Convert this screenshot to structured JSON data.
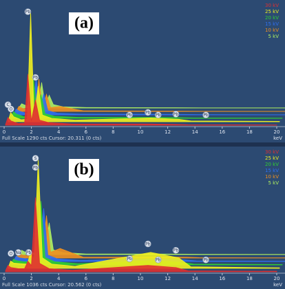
{
  "chart_data": [
    {
      "type": "area",
      "title": "(a)",
      "footer": "Full Scale 1290 cts Cursor: 20.311 (0 cts)",
      "x_label": "keV",
      "x": [
        0.1,
        0.28,
        0.5,
        1.04,
        1.5,
        1.74,
        2.0,
        2.3,
        2.6,
        3.3,
        5,
        10.55,
        12.6,
        13.5,
        20
      ],
      "series": [
        {
          "name": "30 kV",
          "color": "#e03030",
          "values": [
            10,
            90,
            50,
            20,
            25,
            600,
            50,
            300,
            60,
            30,
            15,
            15,
            10,
            6,
            3
          ]
        },
        {
          "name": "25 kV",
          "color": "#f0f020",
          "values": [
            10,
            110,
            60,
            25,
            30,
            1290,
            60,
            420,
            80,
            40,
            20,
            45,
            30,
            10,
            5
          ]
        },
        {
          "name": "20 kV",
          "color": "#30d030",
          "values": [
            10,
            80,
            50,
            20,
            25,
            500,
            45,
            280,
            55,
            25,
            12,
            12,
            8,
            5,
            3
          ]
        },
        {
          "name": "15 kV",
          "color": "#3070f0",
          "values": [
            10,
            70,
            45,
            18,
            20,
            450,
            40,
            250,
            50,
            20,
            10,
            8,
            6,
            4,
            2
          ]
        },
        {
          "name": "10 kV",
          "color": "#f09020",
          "values": [
            10,
            60,
            40,
            15,
            18,
            380,
            35,
            200,
            45,
            60,
            8,
            5,
            4,
            3,
            2
          ]
        },
        {
          "name": "5 kV",
          "color": "#b0f060",
          "values": [
            10,
            50,
            35,
            12,
            15,
            300,
            30,
            150,
            40,
            15,
            6,
            4,
            3,
            2,
            2
          ]
        }
      ],
      "xlim": [
        0,
        20
      ],
      "ylim": [
        0,
        1290
      ],
      "xticks": [
        0,
        2,
        4,
        6,
        8,
        10,
        12,
        14,
        16,
        18,
        20
      ],
      "annotations": [
        {
          "text": "Pb",
          "x": 1.74,
          "y": 1290
        },
        {
          "text": "C",
          "x": 0.28,
          "y": 200
        },
        {
          "text": "O",
          "x": 0.5,
          "y": 150
        },
        {
          "text": "Pb",
          "x": 2.3,
          "y": 520
        },
        {
          "text": "Pb",
          "x": 9.2,
          "y": 80
        },
        {
          "text": "Pb",
          "x": 10.55,
          "y": 110
        },
        {
          "text": "Pb",
          "x": 11.3,
          "y": 80
        },
        {
          "text": "Pb",
          "x": 12.6,
          "y": 90
        },
        {
          "text": "Pb",
          "x": 14.8,
          "y": 80
        }
      ]
    },
    {
      "type": "area",
      "title": "(b)",
      "footer": "Full Scale 1036 cts Cursor: 20.562 (0 cts)",
      "x_label": "keV",
      "x": [
        0.1,
        0.28,
        0.5,
        1.04,
        1.5,
        1.74,
        2.0,
        2.3,
        2.6,
        3.3,
        5,
        10.55,
        12.6,
        13.5,
        20
      ],
      "series": [
        {
          "name": "30 kV",
          "color": "#e03030",
          "values": [
            10,
            60,
            40,
            30,
            30,
            100,
            60,
            700,
            80,
            30,
            15,
            60,
            40,
            10,
            5
          ]
        },
        {
          "name": "25 kV",
          "color": "#f0f020",
          "values": [
            10,
            70,
            50,
            45,
            40,
            150,
            80,
            1036,
            100,
            40,
            20,
            150,
            100,
            15,
            5
          ]
        },
        {
          "name": "20 kV",
          "color": "#30d030",
          "values": [
            10,
            55,
            40,
            30,
            30,
            90,
            60,
            600,
            70,
            30,
            12,
            40,
            25,
            8,
            4
          ]
        },
        {
          "name": "15 kV",
          "color": "#3070f0",
          "values": [
            10,
            50,
            35,
            25,
            25,
            80,
            50,
            500,
            60,
            25,
            10,
            25,
            15,
            6,
            3
          ]
        },
        {
          "name": "10 kV",
          "color": "#f09020",
          "values": [
            10,
            45,
            30,
            20,
            20,
            70,
            45,
            400,
            55,
            90,
            8,
            10,
            8,
            4,
            2
          ]
        },
        {
          "name": "5 kV",
          "color": "#b0f060",
          "values": [
            10,
            40,
            25,
            15,
            15,
            60,
            40,
            300,
            45,
            20,
            6,
            5,
            4,
            3,
            2
          ]
        }
      ],
      "xlim": [
        0,
        20
      ],
      "ylim": [
        0,
        1036
      ],
      "xticks": [
        0,
        2,
        4,
        6,
        8,
        10,
        12,
        14,
        16,
        18,
        20
      ],
      "annotations": [
        {
          "text": "S",
          "x": 2.3,
          "y": 1036
        },
        {
          "text": "Pb",
          "x": 2.3,
          "y": 950
        },
        {
          "text": "O",
          "x": 0.5,
          "y": 140
        },
        {
          "text": "Na",
          "x": 1.04,
          "y": 150
        },
        {
          "text": "Pb",
          "x": 1.8,
          "y": 150
        },
        {
          "text": "Pb",
          "x": 9.2,
          "y": 90
        },
        {
          "text": "Pb",
          "x": 10.55,
          "y": 230
        },
        {
          "text": "Pb",
          "x": 11.3,
          "y": 80
        },
        {
          "text": "Pb",
          "x": 12.6,
          "y": 170
        },
        {
          "text": "Pb",
          "x": 14.8,
          "y": 80
        }
      ]
    }
  ]
}
